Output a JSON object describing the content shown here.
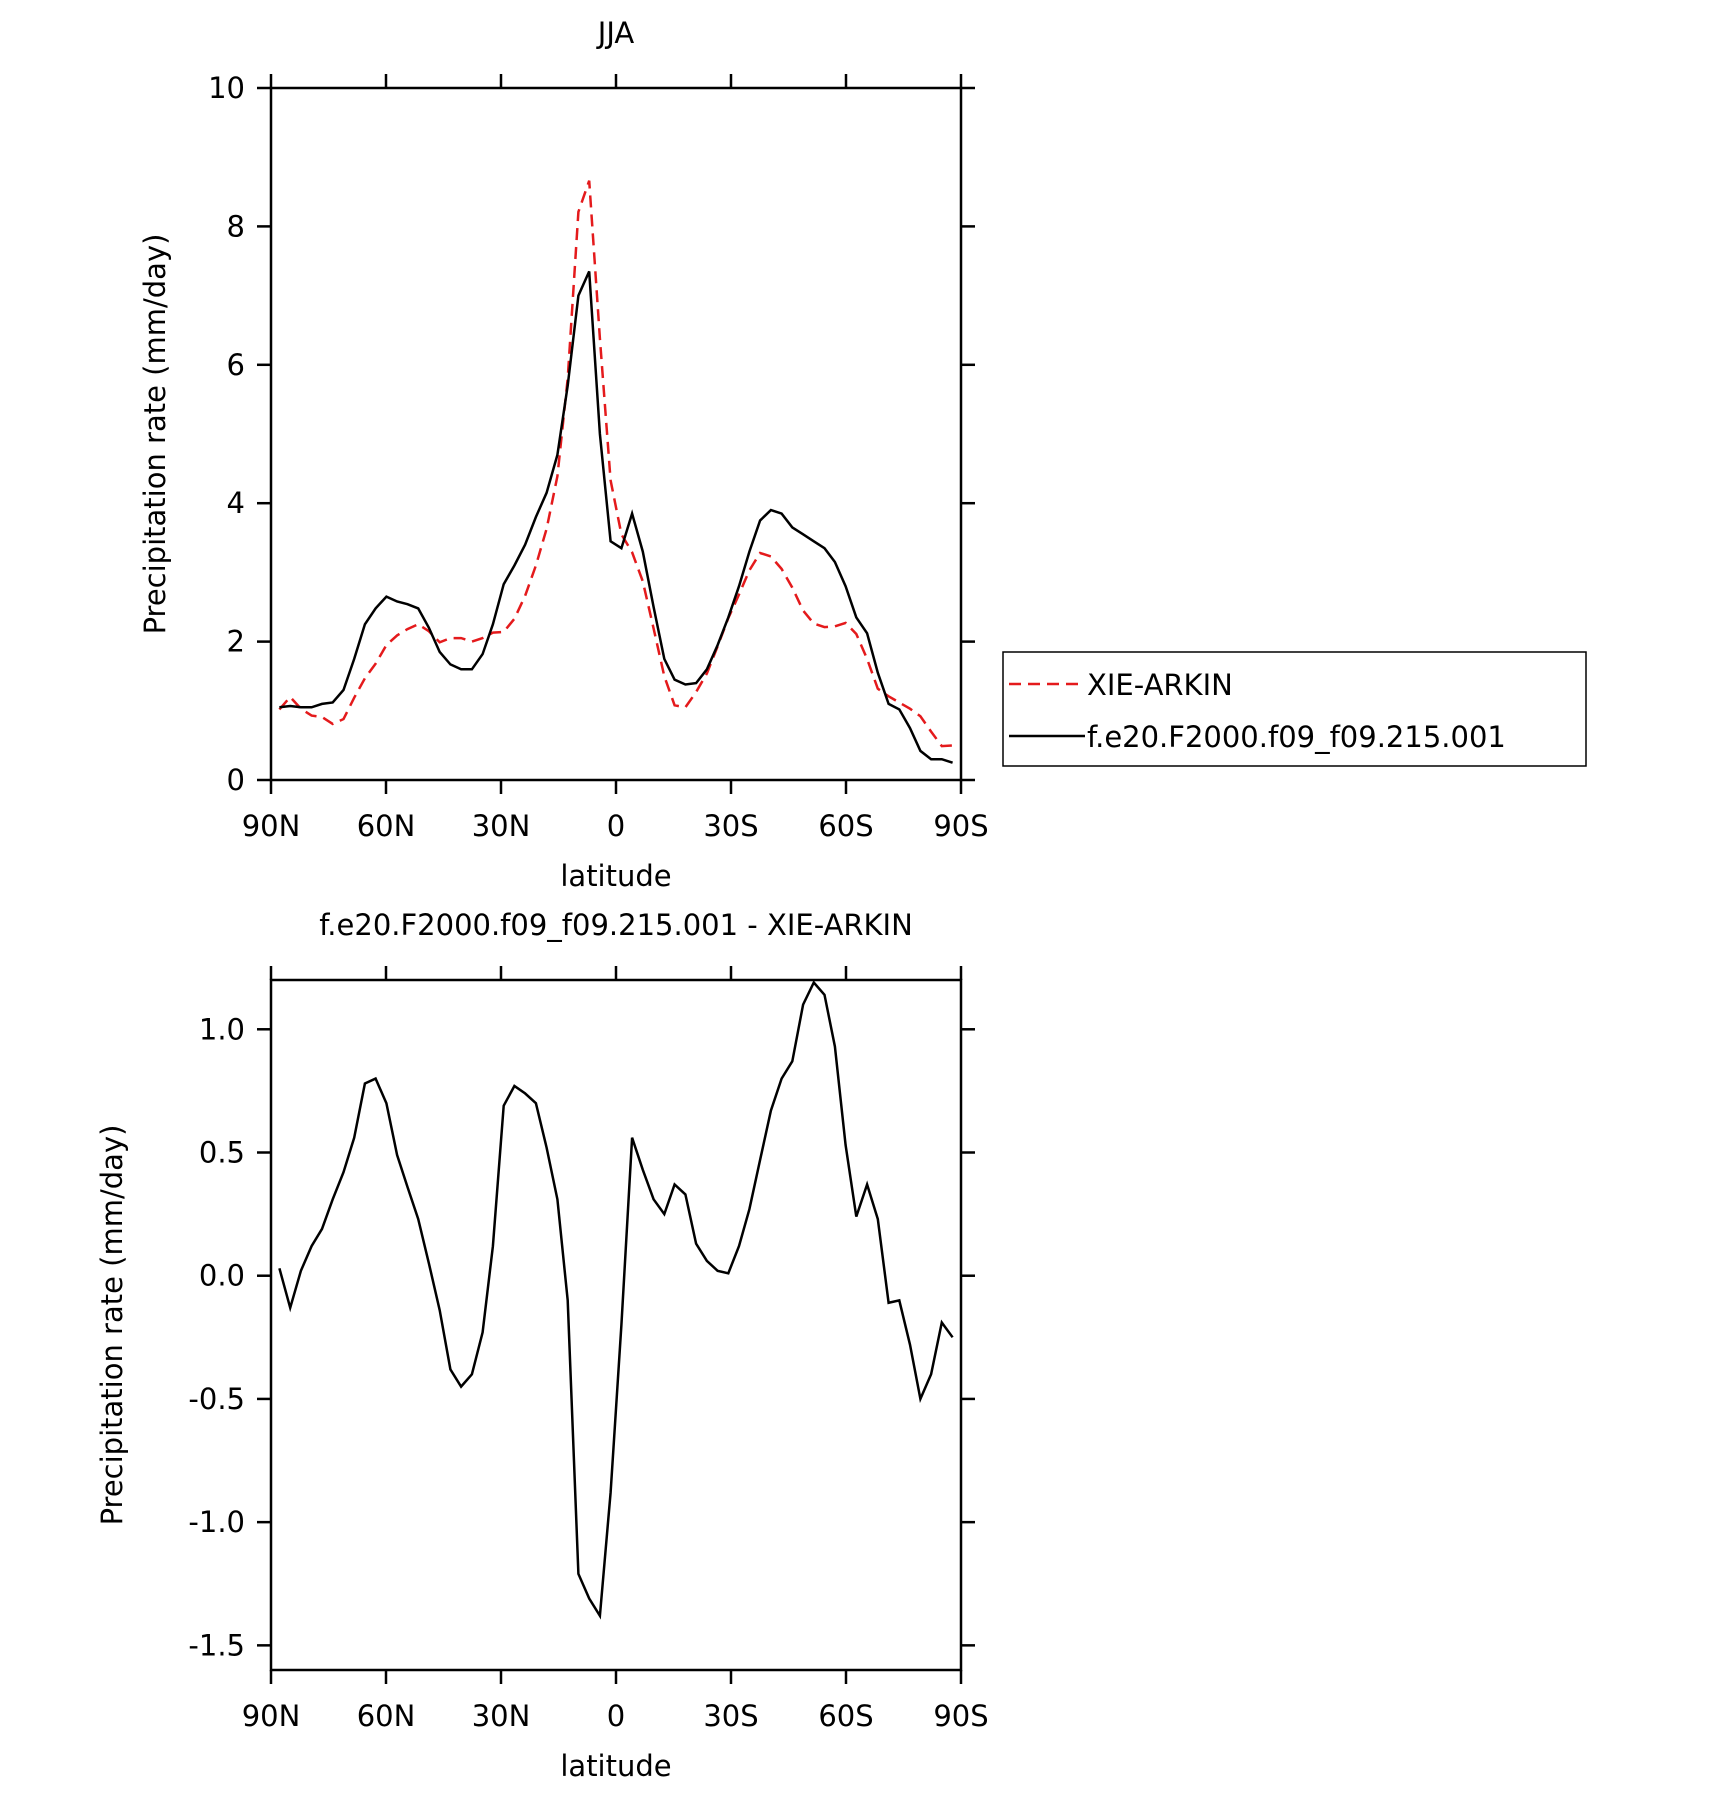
{
  "chart_data": [
    {
      "type": "line",
      "title": "JJA",
      "xlabel": "latitude",
      "ylabel": "Precipitation rate (mm/day)",
      "x": [
        87.8,
        85.0,
        82.2,
        79.4,
        76.7,
        73.9,
        71.1,
        68.3,
        65.5,
        62.7,
        59.9,
        57.1,
        54.4,
        51.6,
        48.8,
        46.0,
        43.2,
        40.4,
        37.6,
        34.8,
        32.1,
        29.3,
        26.5,
        23.7,
        20.9,
        18.1,
        15.3,
        12.6,
        9.8,
        7.0,
        4.2,
        1.4,
        -1.4,
        -4.2,
        -7.0,
        -9.8,
        -12.6,
        -15.3,
        -18.1,
        -20.9,
        -23.7,
        -26.5,
        -29.3,
        -32.1,
        -34.8,
        -37.6,
        -40.4,
        -43.2,
        -46.0,
        -48.8,
        -51.6,
        -54.4,
        -57.1,
        -59.9,
        -62.7,
        -65.5,
        -68.3,
        -71.1,
        -73.9,
        -76.7,
        -79.4,
        -82.2,
        -85.0,
        -87.8
      ],
      "xlim": [
        90,
        -90
      ],
      "xticks": [
        {
          "value": 90,
          "label": "90N"
        },
        {
          "value": 60,
          "label": "60N"
        },
        {
          "value": 30,
          "label": "30N"
        },
        0,
        {
          "value": -30,
          "label": "30S"
        },
        {
          "value": -60,
          "label": "60S"
        },
        {
          "value": -90,
          "label": "90S"
        }
      ],
      "ylim": [
        0,
        10
      ],
      "yticks": [
        0,
        2,
        4,
        6,
        8,
        10
      ],
      "legend": "right",
      "series": [
        {
          "name": "XIE-ARKIN",
          "color": "#e41a1c",
          "dashed": true,
          "values": [
            1.02,
            1.2,
            1.03,
            0.93,
            0.91,
            0.81,
            0.88,
            1.19,
            1.47,
            1.68,
            1.95,
            2.09,
            2.18,
            2.25,
            2.15,
            1.99,
            2.05,
            2.05,
            2.0,
            2.05,
            2.13,
            2.14,
            2.33,
            2.66,
            3.1,
            3.63,
            4.39,
            5.8,
            8.21,
            8.66,
            6.38,
            4.33,
            3.55,
            3.29,
            2.87,
            2.19,
            1.5,
            1.08,
            1.05,
            1.27,
            1.54,
            1.93,
            2.34,
            2.68,
            3.03,
            3.28,
            3.23,
            3.05,
            2.78,
            2.45,
            2.26,
            2.21,
            2.22,
            2.27,
            2.11,
            1.75,
            1.32,
            1.21,
            1.12,
            1.03,
            0.92,
            0.7,
            0.49,
            0.5
          ]
        },
        {
          "name": "f.e20.F2000.f09_f09.215.001",
          "color": "#000000",
          "dashed": false,
          "values": [
            1.05,
            1.07,
            1.05,
            1.05,
            1.1,
            1.12,
            1.3,
            1.75,
            2.25,
            2.48,
            2.65,
            2.58,
            2.54,
            2.48,
            2.2,
            1.85,
            1.67,
            1.6,
            1.6,
            1.82,
            2.25,
            2.83,
            3.1,
            3.4,
            3.8,
            4.15,
            4.7,
            5.7,
            7.0,
            7.35,
            5.0,
            3.45,
            3.35,
            3.85,
            3.3,
            2.5,
            1.75,
            1.45,
            1.38,
            1.4,
            1.6,
            1.95,
            2.35,
            2.8,
            3.3,
            3.75,
            3.9,
            3.85,
            3.65,
            3.55,
            3.45,
            3.35,
            3.15,
            2.8,
            2.35,
            2.12,
            1.55,
            1.1,
            1.02,
            0.75,
            0.42,
            0.3,
            0.3,
            0.25
          ]
        }
      ]
    },
    {
      "type": "line",
      "title": "f.e20.F2000.f09_f09.215.001 - XIE-ARKIN",
      "xlabel": "latitude",
      "ylabel": "Precipitation rate (mm/day)",
      "x": [
        87.8,
        85.0,
        82.2,
        79.4,
        76.7,
        73.9,
        71.1,
        68.3,
        65.5,
        62.7,
        59.9,
        57.1,
        54.4,
        51.6,
        48.8,
        46.0,
        43.2,
        40.4,
        37.6,
        34.8,
        32.1,
        29.3,
        26.5,
        23.7,
        20.9,
        18.1,
        15.3,
        12.6,
        9.8,
        7.0,
        4.2,
        1.4,
        -1.4,
        -4.2,
        -7.0,
        -9.8,
        -12.6,
        -15.3,
        -18.1,
        -20.9,
        -23.7,
        -26.5,
        -29.3,
        -32.1,
        -34.8,
        -37.6,
        -40.4,
        -43.2,
        -46.0,
        -48.8,
        -51.6,
        -54.4,
        -57.1,
        -59.9,
        -62.7,
        -65.5,
        -68.3,
        -71.1,
        -73.9,
        -76.7,
        -79.4,
        -82.2,
        -85.0,
        -87.8
      ],
      "xlim": [
        90,
        -90
      ],
      "xticks": [
        {
          "value": 90,
          "label": "90N"
        },
        {
          "value": 60,
          "label": "60N"
        },
        {
          "value": 30,
          "label": "30N"
        },
        0,
        {
          "value": -30,
          "label": "30S"
        },
        {
          "value": -60,
          "label": "60S"
        },
        {
          "value": -90,
          "label": "90S"
        }
      ],
      "ylim": [
        -1.6,
        1.2
      ],
      "yticks": [
        {
          "value": 1,
          "label": "1.0"
        },
        0.5,
        {
          "value": 0,
          "label": "0.0"
        },
        -0.5,
        {
          "value": -1,
          "label": "-1.0"
        },
        -1.5
      ],
      "color": "#000000",
      "values": [
        0.03,
        -0.13,
        0.02,
        0.12,
        0.19,
        0.31,
        0.42,
        0.56,
        0.78,
        0.8,
        0.7,
        0.49,
        0.36,
        0.23,
        0.05,
        -0.14,
        -0.38,
        -0.45,
        -0.4,
        -0.23,
        0.12,
        0.69,
        0.77,
        0.74,
        0.7,
        0.52,
        0.31,
        -0.1,
        -1.21,
        -1.31,
        -1.38,
        -0.88,
        -0.2,
        0.56,
        0.43,
        0.31,
        0.25,
        0.37,
        0.33,
        0.13,
        0.06,
        0.02,
        0.01,
        0.12,
        0.27,
        0.47,
        0.67,
        0.8,
        0.87,
        1.1,
        1.19,
        1.14,
        0.93,
        0.53,
        0.24,
        0.37,
        0.23,
        -0.11,
        -0.1,
        -0.28,
        -0.5,
        -0.4,
        -0.19,
        -0.25
      ]
    }
  ]
}
